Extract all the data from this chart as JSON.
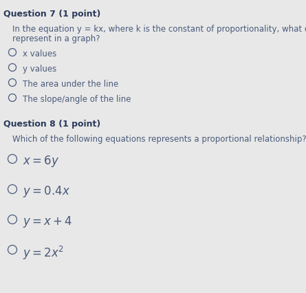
{
  "bg_color": "#e8e8e8",
  "text_color": "#4a5a7a",
  "header_color": "#2a3a5a",
  "q7_header": "Question 7 (1 point)",
  "q7_body_line1": "In the equation y = kx, where k is the constant of proportionality, what does k",
  "q7_body_line2": "represent in a graph?",
  "q7_options": [
    "x values",
    "y values",
    "The area under the line",
    "The slope/angle of the line"
  ],
  "q8_header": "Question 8 (1 point)",
  "q8_body": "Which of the following equations represents a proportional relationship?",
  "q8_options_math": [
    "$x = 6y$",
    "$y = 0.4x$",
    "$y = x + 4$",
    "$y = 2x^2$"
  ],
  "circle_color": "#4a5a7a",
  "header_fontsize": 9,
  "body_fontsize": 8.5,
  "option_fontsize": 8.5,
  "math_fontsize": 12
}
